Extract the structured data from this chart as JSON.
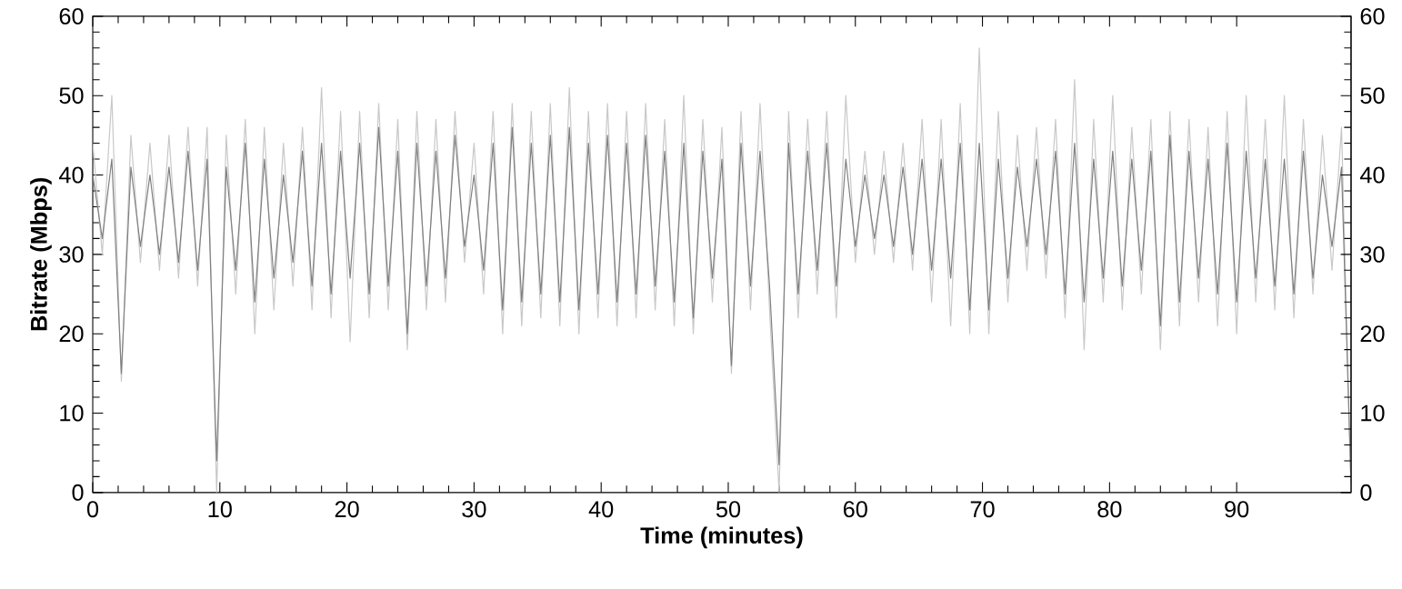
{
  "chart_data": {
    "type": "line",
    "xlabel": "Time (minutes)",
    "ylabel": "Bitrate (Mbps)",
    "xlim": [
      0,
      99
    ],
    "xticks": [
      0,
      10,
      20,
      30,
      40,
      50,
      60,
      70,
      80,
      90
    ],
    "ylim": [
      0,
      60
    ],
    "yticks": [
      0,
      10,
      20,
      30,
      40,
      50,
      60
    ],
    "y2lim": [
      0,
      60
    ],
    "y2ticks": [
      0,
      10,
      20,
      30,
      40,
      50,
      60
    ],
    "x": [
      0,
      0.75,
      1.5,
      2.25,
      3,
      3.75,
      4.5,
      5.25,
      6,
      6.75,
      7.5,
      8.25,
      9,
      9.75,
      10.5,
      11.25,
      12,
      12.75,
      13.5,
      14.25,
      15,
      15.75,
      16.5,
      17.25,
      18,
      18.75,
      19.5,
      20.25,
      21,
      21.75,
      22.5,
      23.25,
      24,
      24.75,
      25.5,
      26.25,
      27,
      27.75,
      28.5,
      29.25,
      30,
      30.75,
      31.5,
      32.25,
      33,
      33.75,
      34.5,
      35.25,
      36,
      36.75,
      37.5,
      38.25,
      39,
      39.75,
      40.5,
      41.25,
      42,
      42.75,
      43.5,
      44.25,
      45,
      45.75,
      46.5,
      47.25,
      48,
      48.75,
      49.5,
      50.25,
      51,
      51.75,
      52.5,
      53.25,
      54,
      54.75,
      55.5,
      56.25,
      57,
      57.75,
      58.5,
      59.25,
      60,
      60.75,
      61.5,
      62.25,
      63,
      63.75,
      64.5,
      65.25,
      66,
      66.75,
      67.5,
      68.25,
      69,
      69.75,
      70.5,
      71.25,
      72,
      72.75,
      73.5,
      74.25,
      75,
      75.75,
      76.5,
      77.25,
      78,
      78.75,
      79.5,
      80.25,
      81,
      81.75,
      82.5,
      83.25,
      84,
      84.75,
      85.5,
      86.25,
      87,
      87.75,
      88.5,
      89.25,
      90,
      90.75,
      91.5,
      92.25,
      93,
      93.75,
      94.5,
      95.25,
      96,
      96.75,
      97.5,
      98.25,
      99
    ],
    "series": [
      {
        "color": "#c8c8c8",
        "values": [
          44,
          30,
          50,
          14,
          45,
          29,
          44,
          28,
          45,
          27,
          46,
          26,
          46,
          0,
          45,
          25,
          47,
          20,
          46,
          23,
          44,
          26,
          46,
          23,
          51,
          22,
          48,
          19,
          48,
          22,
          49,
          23,
          47,
          18,
          48,
          23,
          47,
          24,
          48,
          29,
          44,
          25,
          48,
          20,
          49,
          21,
          48,
          22,
          49,
          21,
          51,
          20,
          48,
          22,
          49,
          21,
          48,
          22,
          49,
          23,
          47,
          21,
          50,
          20,
          47,
          24,
          46,
          15,
          48,
          23,
          49,
          23,
          0,
          48,
          22,
          47,
          25,
          48,
          22,
          50,
          29,
          43,
          30,
          43,
          29,
          44,
          28,
          47,
          24,
          47,
          21,
          49,
          20,
          56,
          20,
          48,
          24,
          45,
          28,
          46,
          27,
          47,
          22,
          52,
          18,
          47,
          24,
          50,
          23,
          46,
          25,
          47,
          18,
          48,
          21,
          47,
          24,
          46,
          21,
          48,
          20,
          50,
          24,
          47,
          23,
          50,
          22,
          47,
          25,
          45,
          28,
          46,
          0
        ]
      },
      {
        "color": "#808080",
        "values": [
          40,
          32,
          42,
          15,
          41,
          31,
          40,
          30,
          41,
          29,
          43,
          28,
          42,
          4,
          41,
          28,
          44,
          24,
          42,
          27,
          40,
          29,
          43,
          26,
          44,
          25,
          43,
          27,
          44,
          25,
          46,
          26,
          43,
          20,
          44,
          26,
          43,
          27,
          45,
          31,
          40,
          28,
          44,
          23,
          46,
          24,
          44,
          25,
          45,
          24,
          46,
          23,
          44,
          25,
          45,
          24,
          44,
          25,
          45,
          26,
          43,
          24,
          44,
          22,
          43,
          27,
          42,
          16,
          44,
          26,
          43,
          26,
          3.5,
          44,
          25,
          43,
          28,
          44,
          26,
          42,
          31,
          40,
          32,
          40,
          31,
          41,
          30,
          42,
          28,
          42,
          27,
          44,
          23,
          44,
          23,
          42,
          27,
          41,
          31,
          42,
          30,
          43,
          25,
          44,
          24,
          42,
          27,
          43,
          26,
          42,
          28,
          43,
          21,
          45,
          24,
          43,
          27,
          42,
          25,
          44,
          24,
          43,
          27,
          42,
          26,
          42,
          25,
          43,
          27,
          40,
          31,
          41,
          1
        ]
      }
    ]
  }
}
